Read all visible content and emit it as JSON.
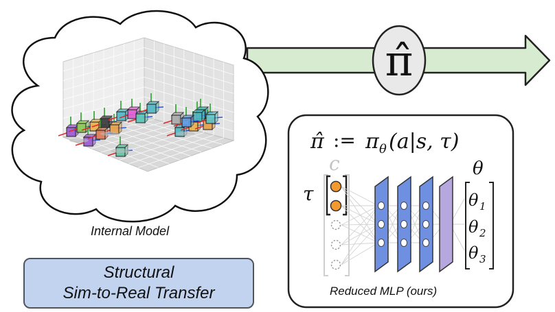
{
  "policy_symbol": "π̂",
  "formula": {
    "lhs": "π̂",
    "assign": ":=",
    "rhs_pi": "π",
    "rhs_sub": "θ",
    "rhs_args": "(a|s, τ)"
  },
  "context_label": "c",
  "tau_label": "τ",
  "theta_label": "θ",
  "theta_entries": [
    {
      "base": "θ",
      "sub": "1"
    },
    {
      "base": "θ",
      "sub": "2"
    },
    {
      "base": "θ",
      "sub": "3"
    }
  ],
  "captions": {
    "internal_model": "Internal Model",
    "mlp": "Reduced MLP (ours)"
  },
  "banner": {
    "line1": "Structural",
    "line2": "Sim-to-Real Transfer"
  },
  "colors": {
    "arrow_fill": "#d6ebd0",
    "banner_fill": "#c2d3f0",
    "mlp_layer": "#6f8fe0",
    "mlp_output_layer": "#b6a8de",
    "context_active": "#f29a2e"
  }
}
